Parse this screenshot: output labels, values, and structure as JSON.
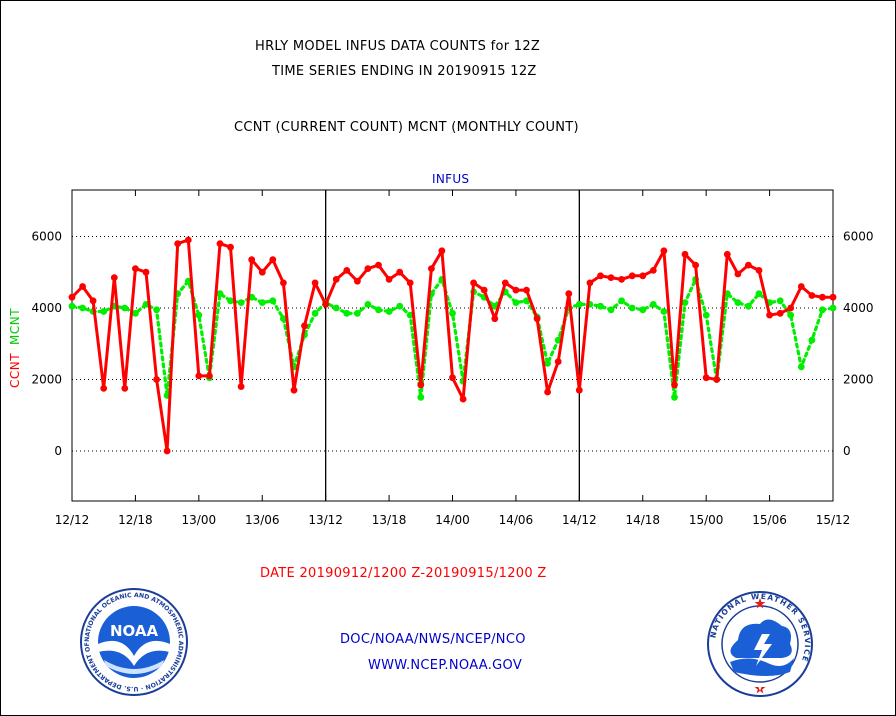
{
  "title_line1": "HRLY MODEL INFUS DATA COUNTS for 12Z",
  "title_line2": "TIME SERIES ENDING IN 20190915 12Z",
  "subtitle": "CCNT (CURRENT COUNT) MCNT (MONTHLY COUNT)",
  "date_range": "DATE 20190912/1200 Z-20190915/1200 Z",
  "footer_org": "DOC/NOAA/NWS/NCEP/NCO",
  "footer_url": "WWW.NCEP.NOAA.GOV",
  "logos": {
    "noaa": {
      "text": "NOAA",
      "ring_text": "NATIONAL OCEANIC AND ATMOSPHERIC ADMINISTRATION · U.S. DEPARTMENT OF COMMERCE"
    },
    "nws": {
      "ring_text": "NATIONAL WEATHER SERVICE"
    }
  },
  "colors": {
    "ccnt": "#ff0000",
    "mcnt": "#00ee00",
    "title": "#000000",
    "footer": "#0000cc"
  },
  "chart_data": {
    "type": "line",
    "title": "INFUS",
    "ylabel_left": {
      "ccnt": "CCNT",
      "mcnt": "MCNT"
    },
    "ylim": [
      -1400,
      7300
    ],
    "yticks": [
      0,
      2000,
      4000,
      6000
    ],
    "xlim_hours": [
      0,
      72
    ],
    "xticks": [
      {
        "h": 0,
        "label": "12/12"
      },
      {
        "h": 6,
        "label": "12/18"
      },
      {
        "h": 12,
        "label": "13/00"
      },
      {
        "h": 18,
        "label": "13/06"
      },
      {
        "h": 24,
        "label": "13/12"
      },
      {
        "h": 30,
        "label": "13/18"
      },
      {
        "h": 36,
        "label": "14/00"
      },
      {
        "h": 42,
        "label": "14/06"
      },
      {
        "h": 48,
        "label": "14/12"
      },
      {
        "h": 54,
        "label": "14/18"
      },
      {
        "h": 60,
        "label": "15/00"
      },
      {
        "h": 66,
        "label": "15/06"
      },
      {
        "h": 72,
        "label": "15/12"
      }
    ],
    "day_dividers": [
      24,
      48
    ],
    "grid": "dotted horizontal at y ticks",
    "series": [
      {
        "name": "CCNT",
        "style": "solid",
        "values": [
          4300,
          4600,
          4200,
          1750,
          4850,
          1750,
          5100,
          5000,
          2000,
          0,
          5800,
          5900,
          2100,
          2100,
          5800,
          5700,
          1800,
          5350,
          5000,
          5350,
          4700,
          1700,
          3500,
          4700,
          4100,
          4800,
          5050,
          4750,
          5100,
          5200,
          4800,
          5000,
          4700,
          1850,
          5100,
          5600,
          2050,
          1450,
          4700,
          4500,
          3700,
          4700,
          4500,
          4500,
          3700,
          1650,
          2500,
          4400,
          1700,
          4700,
          4900,
          4850,
          4800,
          4900,
          4900,
          5050,
          5600,
          1850,
          5500,
          5200,
          2050,
          2000,
          5500,
          4950,
          5200,
          5050,
          3800,
          3850,
          4000,
          4600,
          4350,
          4300,
          4300
        ]
      },
      {
        "name": "MCNT",
        "style": "dotted",
        "values": [
          4050,
          4000,
          3900,
          3900,
          4050,
          4000,
          3850,
          4100,
          3950,
          1550,
          4400,
          4750,
          3800,
          2050,
          4400,
          4200,
          4150,
          4300,
          4150,
          4200,
          3700,
          2350,
          3250,
          3850,
          4150,
          4000,
          3850,
          3850,
          4100,
          3950,
          3900,
          4050,
          3800,
          1500,
          4400,
          4800,
          3850,
          1950,
          4450,
          4300,
          4050,
          4450,
          4150,
          4200,
          3750,
          2450,
          3100,
          4000,
          4100,
          4100,
          4050,
          3950,
          4200,
          4000,
          3950,
          4100,
          3900,
          1500,
          4150,
          4800,
          3800,
          2000,
          4400,
          4150,
          4050,
          4400,
          4150,
          4200,
          3800,
          2350,
          3100,
          3950,
          4000
        ]
      }
    ]
  }
}
